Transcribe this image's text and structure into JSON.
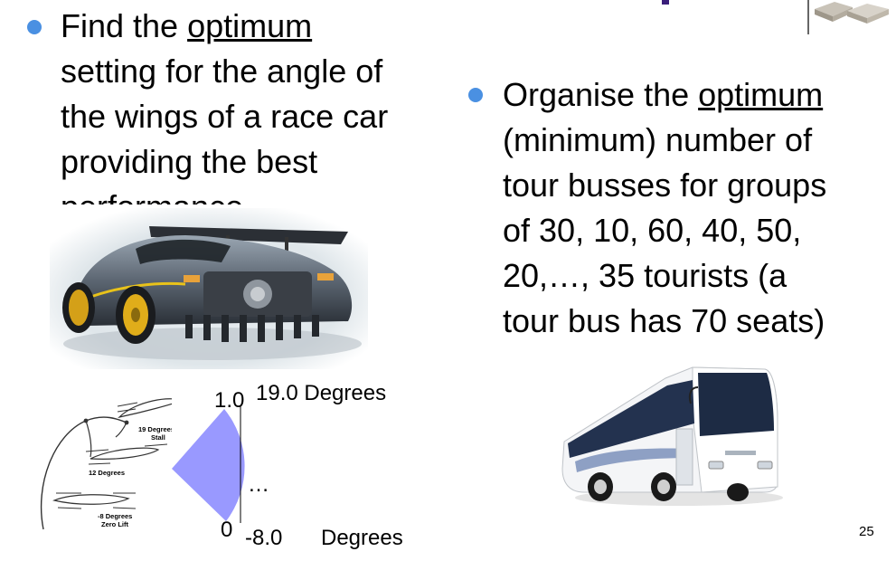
{
  "left_bullet": {
    "lines": [
      [
        "Find the ",
        "optimum",
        ""
      ],
      "setting for the angle of",
      "the wings of a race car",
      "providing the best",
      "performance"
    ]
  },
  "right_bullet": {
    "lines": [
      [
        "Organise the ",
        "optimum",
        ""
      ],
      "(minimum) number of",
      "tour busses for groups",
      "of 30, 10, 60, 40, 50,",
      "20,…, 35 tourists (a",
      "tour bus has 70 seats)"
    ]
  },
  "wing_diagram": {
    "label_stall_1": "19 Degrees",
    "label_stall_2": "Stall",
    "label_mid": "12 Degrees",
    "label_low_1": "-8 Degrees",
    "label_low_2": "Zero Lift"
  },
  "angle_scale": {
    "top_value": "1.0",
    "top_label": "19.0 Degrees",
    "ellipsis": "…",
    "bottom_value": "0",
    "bottom_label_value": "-8.0",
    "bottom_label_unit": "Degrees"
  },
  "page_number": "25",
  "colors": {
    "bullet": "#4a90e2",
    "fan": "#9999ff",
    "accent": "#3a1e7a"
  }
}
